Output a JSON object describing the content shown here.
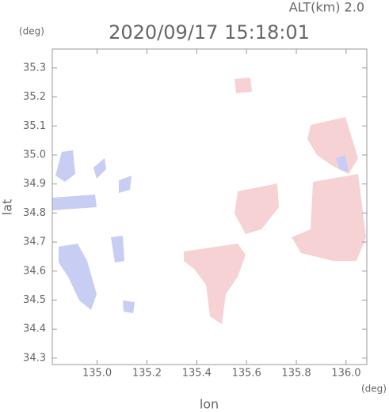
{
  "chart_data": {
    "type": "radar-map",
    "title": "2020/09/17 15:18:01",
    "altitude_label": "ALT(km) 2.0",
    "y_unit": "(deg)",
    "x_unit": "(deg)",
    "xlabel": "lon",
    "ylabel": "lat",
    "xlim": [
      134.82,
      136.083
    ],
    "ylim": [
      34.278,
      35.365
    ],
    "xticks": [
      {
        "value": 135.0,
        "label": "135.0"
      },
      135.2,
      135.4,
      135.6,
      135.8,
      {
        "value": 136.0,
        "label": "136.0"
      }
    ],
    "yticks": [
      34.3,
      34.4,
      34.5,
      34.6,
      34.7,
      34.8,
      34.9,
      {
        "value": 35.0,
        "label": "35.0"
      },
      35.1,
      35.2,
      35.3
    ]
  }
}
